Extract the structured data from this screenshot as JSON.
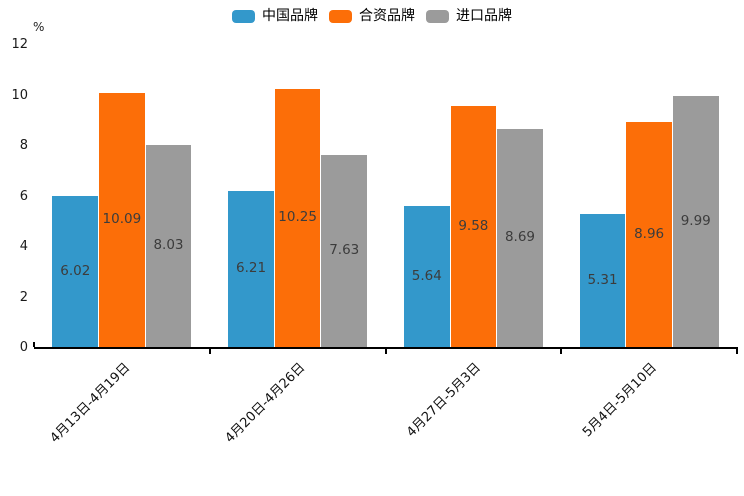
{
  "chart_data": {
    "type": "bar",
    "title": "",
    "unit_label": "%",
    "categories": [
      "4月13日-4月19日",
      "4月20日-4月26日",
      "4月27日-5月3日",
      "5月4日-5月10日"
    ],
    "series": [
      {
        "name": "中国品牌",
        "color": "#3398CB",
        "values": [
          6.02,
          6.21,
          5.64,
          5.31
        ]
      },
      {
        "name": "合资品牌",
        "color": "#FC6E08",
        "values": [
          10.09,
          10.25,
          9.58,
          8.96
        ]
      },
      {
        "name": "进口品牌",
        "color": "#9B9B9B",
        "values": [
          8.03,
          7.63,
          8.69,
          9.99
        ]
      }
    ],
    "ylim": [
      0,
      12
    ],
    "yticks": [
      0,
      2,
      4,
      6,
      8,
      10,
      12
    ],
    "legend_position": "top-center",
    "grid": false,
    "value_label_position": "inside-center",
    "value_label_color": "#3c3c3c",
    "xtick_rotation_deg": 45,
    "axis_color": "#000000",
    "background": "#ffffff"
  }
}
